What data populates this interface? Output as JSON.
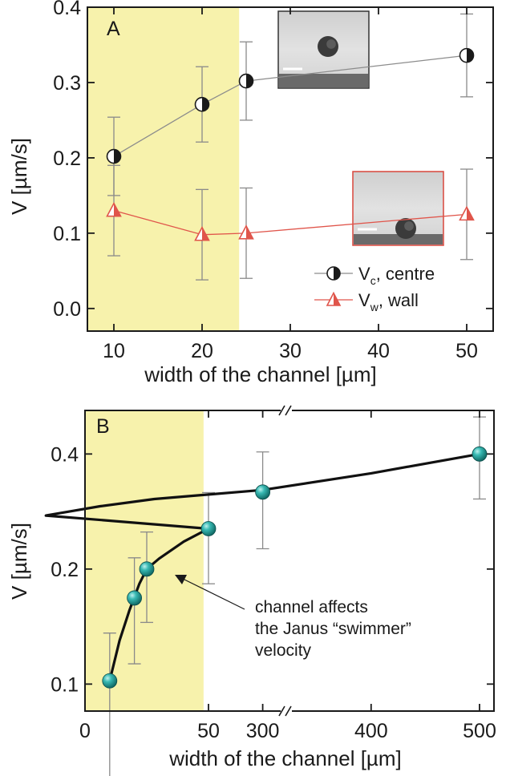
{
  "chart_data": [
    {
      "panel_label": "A",
      "type": "scatter",
      "xlabel": "width of the channel [µm]",
      "ylabel": "V [µm/s]",
      "xlim": [
        7,
        53
      ],
      "ylim": [
        -0.03,
        0.4
      ],
      "x_ticks": [
        "10",
        "20",
        "30",
        "40",
        "50"
      ],
      "x_tick_values": [
        10,
        20,
        30,
        40,
        50
      ],
      "y_ticks": [
        "0.0",
        "0.1",
        "0.2",
        "0.3",
        "0.4"
      ],
      "y_tick_values": [
        0.0,
        0.1,
        0.2,
        0.3,
        0.4
      ],
      "shaded_region": {
        "x": [
          7,
          24.2
        ],
        "color": "#f7f2ac"
      },
      "series": [
        {
          "name": "V",
          "name_subscript": "c",
          "name_suffix": ", centre",
          "marker": "half-filled-circle",
          "color": "#8c8c8c",
          "x": [
            10,
            20,
            25,
            50
          ],
          "y": [
            0.202,
            0.271,
            0.302,
            0.336
          ],
          "err": [
            0.052,
            0.05,
            0.052,
            0.055
          ]
        },
        {
          "name": "V",
          "name_subscript": "w",
          "name_suffix": ", wall",
          "marker": "half-filled-triangle",
          "color": "#e0554b",
          "x": [
            10,
            20,
            25,
            50
          ],
          "y": [
            0.13,
            0.098,
            0.1,
            0.125
          ],
          "err": [
            0.06,
            0.06,
            0.06,
            0.06
          ]
        }
      ],
      "insets": [
        {
          "name": "inset-particle-centre",
          "border_color": "#333333"
        },
        {
          "name": "inset-particle-wall",
          "border_color": "#d9463c"
        }
      ]
    },
    {
      "panel_label": "B",
      "type": "scatter",
      "xlabel": "width of the channel [µm]",
      "ylabel": "V [µm/s]",
      "x_axis_break": true,
      "x_ticks": [
        "0",
        "50",
        "300",
        "400",
        "500"
      ],
      "x_tick_values": [
        0,
        50,
        300,
        400,
        500
      ],
      "y_ticks": [
        "0.1",
        "0.2",
        "0.4"
      ],
      "y_tick_values": [
        0.1,
        0.2,
        0.4
      ],
      "y_scale": "log",
      "ylim": [
        0.085,
        0.52
      ],
      "shaded_region": {
        "x": [
          0,
          48
        ],
        "color": "#f7f2ac"
      },
      "series": [
        {
          "name": "Janus swimmer velocity",
          "marker": "teal-sphere",
          "color": "#1a9e9a",
          "x": [
            10,
            20,
            25,
            50,
            300,
            500
          ],
          "y": [
            0.102,
            0.168,
            0.2,
            0.255,
            0.318,
            0.4
          ],
          "err_low": [
            0.047,
            0.055,
            0.055,
            0.072,
            0.092,
            0.095
          ],
          "err_high": [
            0.034,
            0.046,
            0.05,
            0.062,
            0.087,
            0.1
          ]
        }
      ],
      "fit_curve": {
        "x": [
          10,
          14,
          18,
          22,
          25,
          30,
          40,
          50,
          100,
          150,
          200,
          300,
          400,
          500
        ],
        "y": [
          0.102,
          0.13,
          0.156,
          0.183,
          0.2,
          0.213,
          0.236,
          0.255,
          0.276,
          0.292,
          0.305,
          0.322,
          0.356,
          0.4
        ]
      },
      "annotation": {
        "lines": [
          "channel affects",
          "the Janus “swimmer”",
          "velocity"
        ]
      }
    }
  ]
}
